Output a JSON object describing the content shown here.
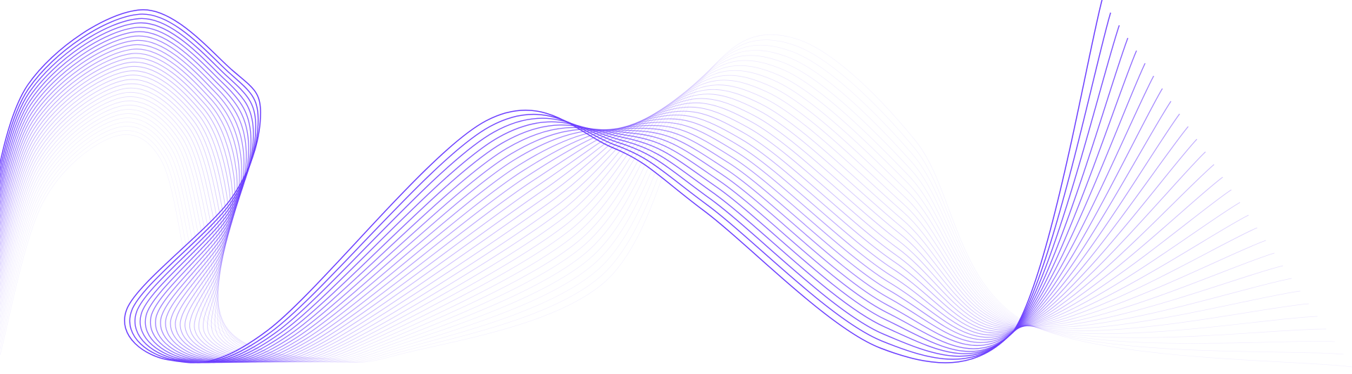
{
  "graphic": {
    "type": "decorative-wave-lines",
    "stroke_color": "#6a3cff",
    "background_color": "#ffffff",
    "line_count": 30
  }
}
